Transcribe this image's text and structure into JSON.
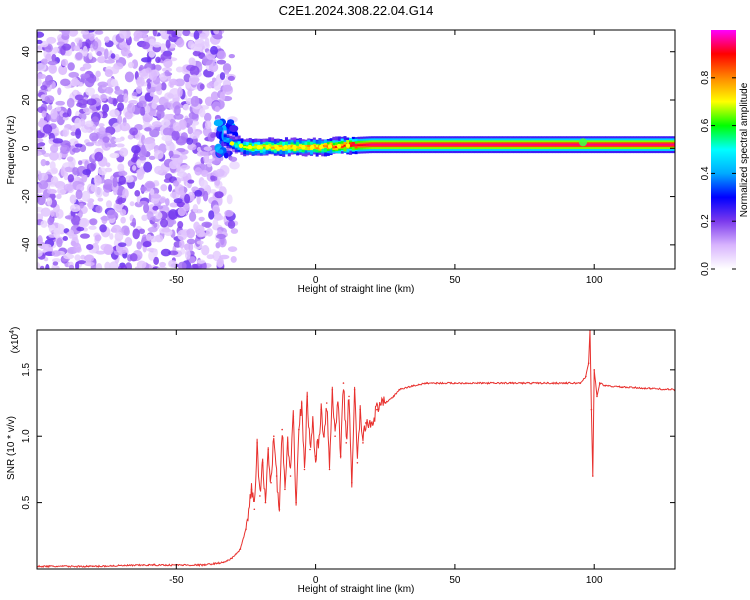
{
  "title": "C2E1.2024.308.22.04.G14",
  "chart_data": [
    {
      "type": "heatmap",
      "title": "C2E1.2024.308.22.04.G14",
      "xlabel": "Height of straight line (km)",
      "ylabel": "Frequency (Hz)",
      "xlim": [
        -100,
        129
      ],
      "ylim": [
        -50,
        49
      ],
      "x_ticks": [
        -50,
        0,
        50,
        100
      ],
      "y_ticks": [
        -40,
        -20,
        0,
        20,
        40
      ],
      "colorbar": {
        "label": "Normalized spectral amplitude",
        "range": [
          0,
          1
        ],
        "ticks": [
          "0.0",
          "0.2",
          "0.4",
          "0.6",
          "0.8"
        ],
        "colors": [
          "#ffffff",
          "#d8b4fe",
          "#7c3aed",
          "#0000ff",
          "#00aaff",
          "#00ffff",
          "#00ff00",
          "#ffff00",
          "#ff8800",
          "#ff0000",
          "#ff00ff"
        ]
      },
      "noise_region": {
        "x": [
          -100,
          -33
        ],
        "y": [
          -50,
          49
        ],
        "amplitude_range": [
          0.05,
          0.2
        ]
      },
      "signal_track": [
        {
          "x": -33,
          "freq": 4,
          "amplitude": 0.35
        },
        {
          "x": -30,
          "freq": 2,
          "amplitude": 0.45
        },
        {
          "x": -25,
          "freq": 0.5,
          "amplitude": 0.7
        },
        {
          "x": 0,
          "freq": 0.5,
          "amplitude": 0.8
        },
        {
          "x": 10,
          "freq": 1,
          "amplitude": 0.9
        },
        {
          "x": 20,
          "freq": 1.5,
          "amplitude": 1.0
        },
        {
          "x": 60,
          "freq": 1.5,
          "amplitude": 1.0
        },
        {
          "x": 96,
          "freq": 1.5,
          "amplitude": 1.0
        },
        {
          "x": 129,
          "freq": 1.5,
          "amplitude": 1.0
        }
      ]
    },
    {
      "type": "line",
      "xlabel": "Height of straight line (km)",
      "ylabel": "SNR (10 * v/v)",
      "y_multiplier_label": "(x10",
      "y_multiplier_exponent": "4",
      "xlim": [
        -100,
        129
      ],
      "ylim": [
        0,
        1.8
      ],
      "x_ticks": [
        -50,
        0,
        50,
        100
      ],
      "y_ticks": [
        0.5,
        1.0,
        1.5
      ],
      "y_tick_labels": [
        "0.5",
        "1.0",
        "1.5"
      ],
      "series": [
        {
          "color": "#e8312e",
          "x": [
            -100,
            -80,
            -60,
            -40,
            -33,
            -30,
            -27,
            -25,
            -23,
            -22,
            -21,
            -20,
            -19,
            -18,
            -17,
            -16,
            -15,
            -14,
            -13,
            -12,
            -11,
            -10,
            -9,
            -8,
            -7,
            -6,
            -5,
            -4,
            -3,
            -2,
            -1,
            0,
            1,
            2,
            3,
            4,
            5,
            6,
            7,
            8,
            9,
            10,
            11,
            12,
            13,
            14,
            15,
            16,
            17,
            18,
            20,
            22,
            25,
            28,
            30,
            35,
            40,
            50,
            60,
            70,
            80,
            90,
            95,
            97,
            98,
            98.5,
            99,
            99.5,
            100,
            101,
            102,
            104,
            110,
            120,
            129
          ],
          "y": [
            0.02,
            0.02,
            0.03,
            0.03,
            0.05,
            0.08,
            0.15,
            0.3,
            0.6,
            0.45,
            0.95,
            0.55,
            0.8,
            0.5,
            0.9,
            0.65,
            1.0,
            0.7,
            0.45,
            1.05,
            0.6,
            0.95,
            0.7,
            1.15,
            0.5,
            1.05,
            1.25,
            0.75,
            1.3,
            0.9,
            1.1,
            0.85,
            0.95,
            1.2,
            1.0,
            1.25,
            0.75,
            1.35,
            1.0,
            1.25,
            0.85,
            1.4,
            0.95,
            1.3,
            0.65,
            1.35,
            0.8,
            1.2,
            0.95,
            1.1,
            1.1,
            1.2,
            1.25,
            1.3,
            1.35,
            1.38,
            1.4,
            1.4,
            1.4,
            1.4,
            1.4,
            1.4,
            1.4,
            1.45,
            1.55,
            1.8,
            1.2,
            0.7,
            1.5,
            1.3,
            1.4,
            1.38,
            1.37,
            1.36,
            1.35
          ]
        }
      ]
    }
  ]
}
